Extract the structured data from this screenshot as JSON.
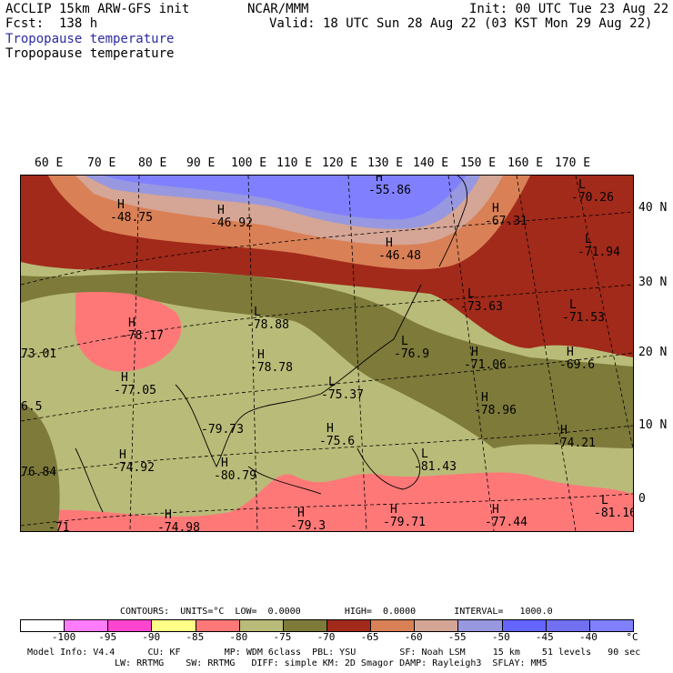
{
  "header": {
    "line1_left": "ACCLIP 15km ARW-GFS init",
    "line1_center": "NCAR/MMM",
    "line1_right": "Init: 00 UTC Tue 23 Aug 22",
    "line2_left": "Fcst:  138 h",
    "line2_right": "Valid: 18 UTC Sun 28 Aug 22 (03 KST Mon 29 Aug 22)",
    "field_title_1": "Tropopause temperature",
    "field_title_2": "Tropopause temperature"
  },
  "axes": {
    "lon_labels": [
      "60 E",
      "70 E",
      "80 E",
      "90 E",
      "100 E",
      "110 E",
      "120 E",
      "130 E",
      "140 E",
      "150 E",
      "160 E",
      "170 E"
    ],
    "lat_labels": [
      "40 N",
      "30 N",
      "20 N",
      "10 N",
      "0"
    ]
  },
  "map_labels": [
    {
      "letter": "H",
      "value": "-55.86"
    },
    {
      "letter": "L",
      "value": "-70.26"
    },
    {
      "letter": "H",
      "value": "-48.75"
    },
    {
      "letter": "H",
      "value": "-46.92"
    },
    {
      "letter": "H",
      "value": "-67.31"
    },
    {
      "letter": "H",
      "value": "-46.48"
    },
    {
      "letter": "L",
      "value": "-71.94"
    },
    {
      "letter": "L",
      "value": "-73.63"
    },
    {
      "letter": "L",
      "value": "-71.53"
    },
    {
      "letter": "L",
      "value": "-78.88"
    },
    {
      "letter": "H",
      "value": "-78.17"
    },
    {
      "letter": "",
      "value": "73.01"
    },
    {
      "letter": "L",
      "value": "-76.9"
    },
    {
      "letter": "H",
      "value": "-71.06"
    },
    {
      "letter": "H",
      "value": "-69.6"
    },
    {
      "letter": "H",
      "value": "-78.78"
    },
    {
      "letter": "H",
      "value": "-77.05"
    },
    {
      "letter": "L",
      "value": "-75.37"
    },
    {
      "letter": "",
      "value": "6.5"
    },
    {
      "letter": "H",
      "value": "-78.96"
    },
    {
      "letter": "",
      "value": "-79.73"
    },
    {
      "letter": "H",
      "value": "-75.6"
    },
    {
      "letter": "H",
      "value": "-74.21"
    },
    {
      "letter": "H",
      "value": "-74.92"
    },
    {
      "letter": "H",
      "value": "-80.79"
    },
    {
      "letter": "L",
      "value": "-81.43"
    },
    {
      "letter": "",
      "value": "76.84"
    },
    {
      "letter": "L",
      "value": "-81.16"
    },
    {
      "letter": "H",
      "value": "-77.44"
    },
    {
      "letter": "H",
      "value": "-79.71"
    },
    {
      "letter": "H",
      "value": "-79.3"
    },
    {
      "letter": "H",
      "value": "-74.98"
    },
    {
      "letter": "",
      "value": "-71"
    }
  ],
  "contours": {
    "text": "CONTOURS:  UNITS=°C  LOW=  0.0000        HIGH=  0.0000       INTERVAL=   1000.0"
  },
  "legend": {
    "colors": [
      "#ffffff",
      "#ff7cff",
      "#ff44d0",
      "#ffff88",
      "#ff7878",
      "#b9bb78",
      "#7d7a3a",
      "#a22a1a",
      "#d98056",
      "#d5a595",
      "#9898e0",
      "#6464ff",
      "#7070f0",
      "#8080ff"
    ],
    "tick_labels": [
      "-100",
      "-95",
      "-90",
      "-85",
      "-80",
      "-75",
      "-70",
      "-65",
      "-60",
      "-55",
      "-50",
      "-45",
      "-40",
      "°C"
    ]
  },
  "model_info": {
    "line1": "Model Info: V4.4      CU: KF        MP: WDM 6class  PBL: YSU        SF: Noah LSM     15 km    51 levels   90 sec",
    "line2": "LW: RRTMG    SW: RRTMG   DIFF: simple KM: 2D Smagor DAMP: Rayleigh3  SFLAY: MM5"
  }
}
